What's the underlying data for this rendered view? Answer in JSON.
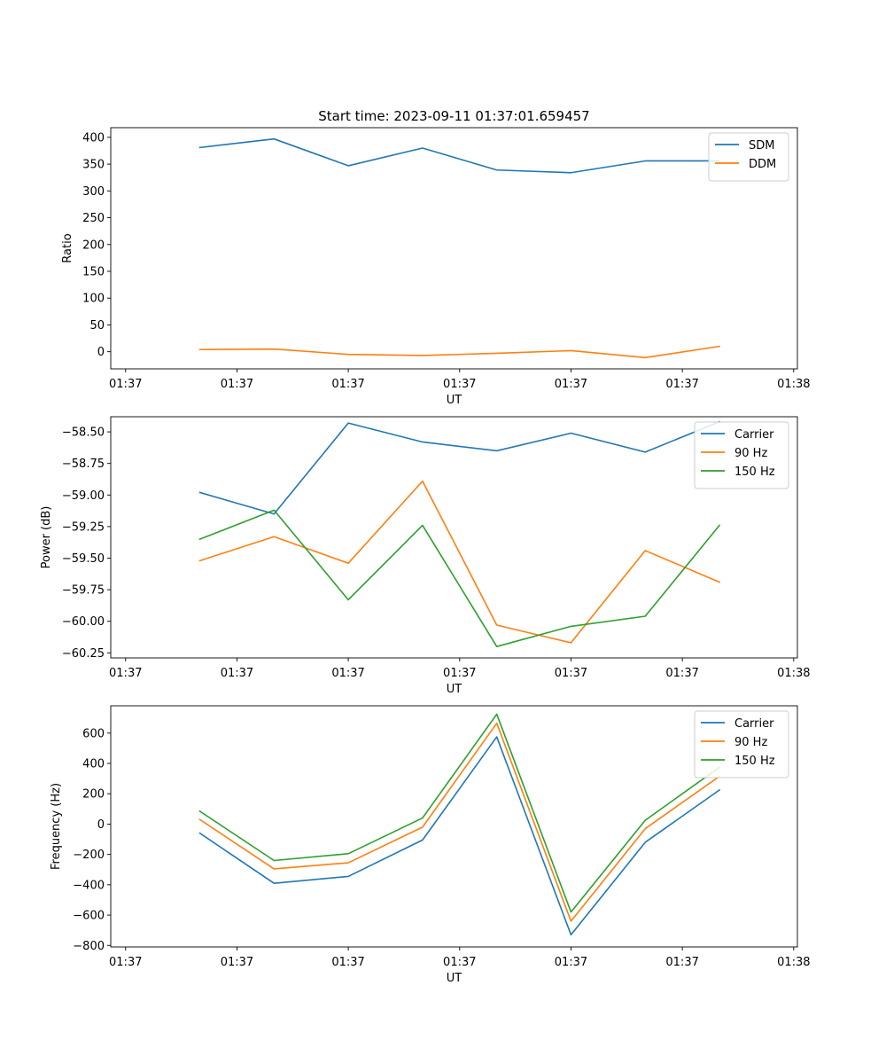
{
  "title": "Start time: 2023-09-11 01:37:01.659457",
  "colors": {
    "blue": "#1f77b4",
    "orange": "#ff7f0e",
    "green": "#2ca02c"
  },
  "chart_data": [
    {
      "type": "line",
      "name": "ratio",
      "xlabel": "UT",
      "ylabel": "Ratio",
      "x_tick_labels": [
        "01:37",
        "01:37",
        "01:37",
        "01:37",
        "01:37",
        "01:37",
        "01:38"
      ],
      "x_index": [
        1,
        2,
        3,
        4,
        5,
        6,
        7,
        8
      ],
      "xlim": [
        -0.2,
        9.05
      ],
      "ylim": [
        -32,
        418
      ],
      "yticks": [
        0,
        50,
        100,
        150,
        200,
        250,
        300,
        350,
        400
      ],
      "ytick_labels": [
        "0",
        "50",
        "100",
        "150",
        "200",
        "250",
        "300",
        "350",
        "400"
      ],
      "legend": "top-right",
      "series": [
        {
          "name": "SDM",
          "color": "#1f77b4",
          "values": [
            381,
            397,
            347,
            380,
            339,
            334,
            356,
            356
          ]
        },
        {
          "name": "DDM",
          "color": "#ff7f0e",
          "values": [
            4,
            5,
            -5,
            -7,
            -3,
            2,
            -11,
            10
          ]
        }
      ]
    },
    {
      "type": "line",
      "name": "power",
      "xlabel": "UT",
      "ylabel": "Power (dB)",
      "x_tick_labels": [
        "01:37",
        "01:37",
        "01:37",
        "01:37",
        "01:37",
        "01:37",
        "01:38"
      ],
      "x_index": [
        1,
        2,
        3,
        4,
        5,
        6,
        7,
        8
      ],
      "xlim": [
        -0.2,
        9.05
      ],
      "ylim": [
        -60.29,
        -58.38
      ],
      "yticks": [
        -60.25,
        -60.0,
        -59.75,
        -59.5,
        -59.25,
        -59.0,
        -58.75,
        -58.5
      ],
      "ytick_labels": [
        "−60.25",
        "−60.00",
        "−59.75",
        "−59.50",
        "−59.25",
        "−59.00",
        "−58.75",
        "−58.50"
      ],
      "legend": "top-right",
      "series": [
        {
          "name": "Carrier",
          "color": "#1f77b4",
          "values": [
            -58.98,
            -59.15,
            -58.43,
            -58.58,
            -58.65,
            -58.51,
            -58.66,
            -58.42
          ]
        },
        {
          "name": "90 Hz",
          "color": "#ff7f0e",
          "values": [
            -59.52,
            -59.33,
            -59.54,
            -58.89,
            -60.03,
            -60.17,
            -59.44,
            -59.69
          ]
        },
        {
          "name": "150 Hz",
          "color": "#2ca02c",
          "values": [
            -59.35,
            -59.12,
            -59.83,
            -59.24,
            -60.2,
            -60.04,
            -59.96,
            -59.24
          ]
        }
      ]
    },
    {
      "type": "line",
      "name": "frequency",
      "xlabel": "UT",
      "ylabel": "Frequency (Hz)",
      "x_tick_labels": [
        "01:37",
        "01:37",
        "01:37",
        "01:37",
        "01:37",
        "01:37",
        "01:38"
      ],
      "x_index": [
        1,
        2,
        3,
        4,
        5,
        6,
        7,
        8
      ],
      "xlim": [
        -0.2,
        9.05
      ],
      "ylim": [
        -810,
        780
      ],
      "yticks": [
        -800,
        -600,
        -400,
        -200,
        0,
        200,
        400,
        600
      ],
      "ytick_labels": [
        "−800",
        "−600",
        "−400",
        "−200",
        "0",
        "200",
        "400",
        "600"
      ],
      "legend": "top-right",
      "series": [
        {
          "name": "Carrier",
          "color": "#1f77b4",
          "values": [
            -60,
            -390,
            -345,
            -105,
            575,
            -730,
            -120,
            225
          ]
        },
        {
          "name": "90 Hz",
          "color": "#ff7f0e",
          "values": [
            30,
            -295,
            -255,
            -20,
            665,
            -640,
            -30,
            315
          ]
        },
        {
          "name": "150 Hz",
          "color": "#2ca02c",
          "values": [
            85,
            -240,
            -195,
            40,
            725,
            -580,
            25,
            375
          ]
        }
      ]
    }
  ]
}
